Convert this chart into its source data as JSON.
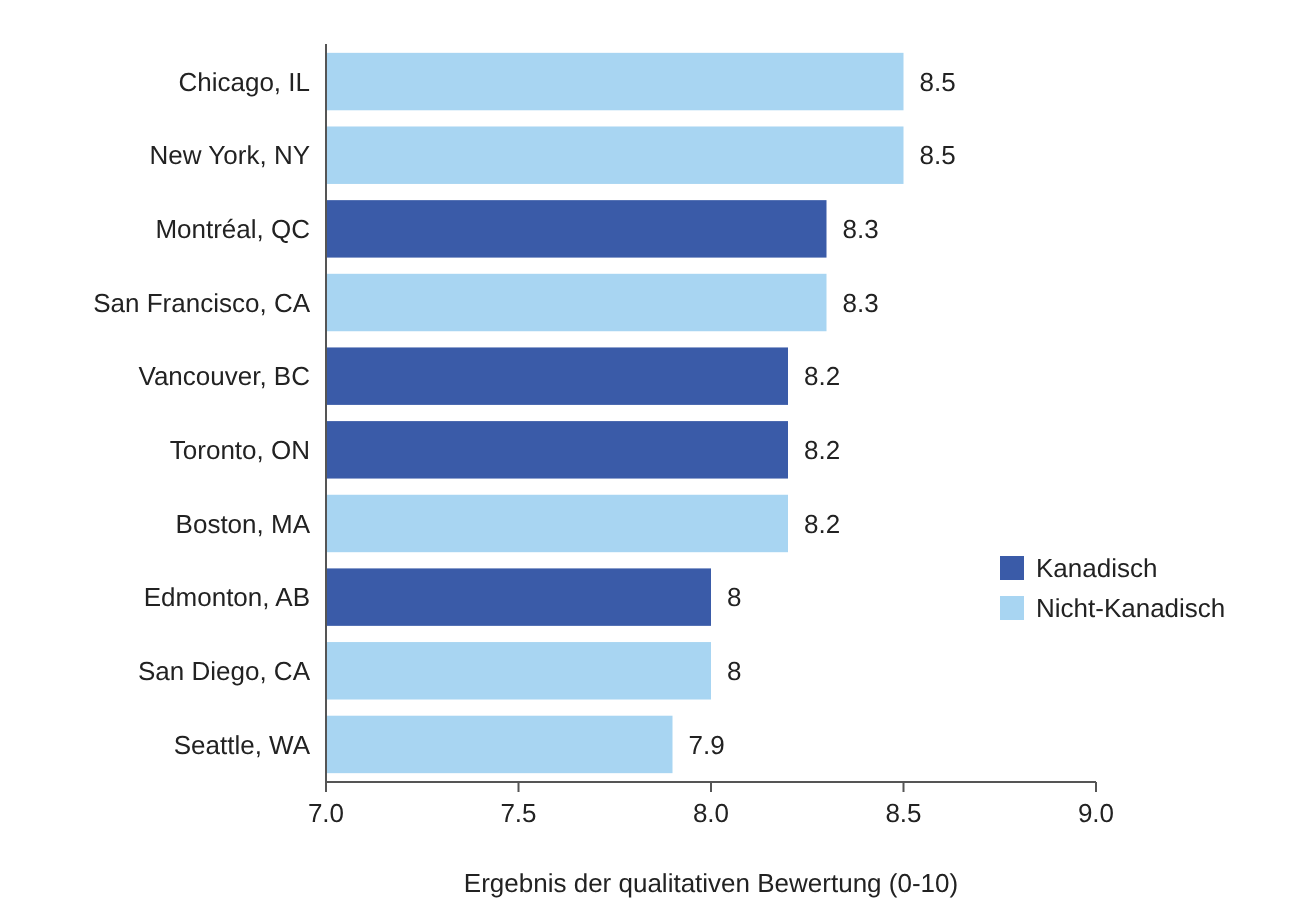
{
  "chart_data": {
    "type": "bar",
    "orientation": "horizontal",
    "xlabel": "Ergebnis der qualitativen Bewertung (0-10)",
    "categories": [
      "Chicago, IL",
      "New York, NY",
      "Montréal, QC",
      "San Francisco, CA",
      "Vancouver, BC",
      "Toronto, ON",
      "Boston, MA",
      "Edmonton, AB",
      "San Diego, CA",
      "Seattle, WA"
    ],
    "series": [
      {
        "name": "Kanadisch",
        "color": "#3a5ba8",
        "values": [
          null,
          null,
          8.3,
          null,
          8.2,
          8.2,
          null,
          8,
          null,
          null
        ]
      },
      {
        "name": "Nicht-Kanadisch",
        "color": "#a8d5f2",
        "values": [
          8.5,
          8.5,
          null,
          8.3,
          null,
          null,
          8.2,
          null,
          8,
          7.9
        ]
      }
    ],
    "xlim": [
      7,
      9
    ],
    "xticks": [
      {
        "value": 7,
        "label": "7.0"
      },
      {
        "value": 7.5,
        "label": "7.5"
      },
      {
        "value": 8,
        "label": "8.0"
      },
      {
        "value": 8.5,
        "label": "8.5"
      },
      {
        "value": 9,
        "label": "9.0"
      }
    ],
    "data_labels": true,
    "legend": "right"
  }
}
